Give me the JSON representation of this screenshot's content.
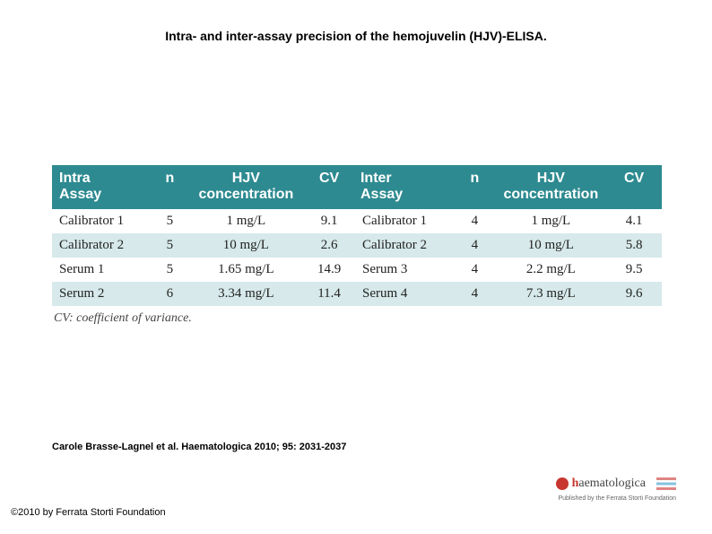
{
  "title": "Intra- and inter-assay precision of the hemojuvelin (HJV)-ELISA.",
  "table": {
    "headers": {
      "intra_assay": "Intra\nAssay",
      "n1": "n",
      "hjv1": "HJV\nconcentration",
      "cv1": "CV",
      "inter_assay": "Inter\nAssay",
      "n2": "n",
      "hjv2": "HJV\nconcentration",
      "cv2": "CV"
    },
    "rows": [
      {
        "label1": "Calibrator 1",
        "n1": "5",
        "conc1": "1 mg/L",
        "cv1": "9.1",
        "label2": "Calibrator 1",
        "n2": "4",
        "conc2": "1 mg/L",
        "cv2": "4.1",
        "band": "white"
      },
      {
        "label1": "Calibrator 2",
        "n1": "5",
        "conc1": "10 mg/L",
        "cv1": "2.6",
        "label2": "Calibrator 2",
        "n2": "4",
        "conc2": "10 mg/L",
        "cv2": "5.8",
        "band": "light"
      },
      {
        "label1": "Serum 1",
        "n1": "5",
        "conc1": "1.65 mg/L",
        "cv1": "14.9",
        "label2": "Serum 3",
        "n2": "4",
        "conc2": "2.2 mg/L",
        "cv2": "9.5",
        "band": "white"
      },
      {
        "label1": "Serum 2",
        "n1": "6",
        "conc1": "3.34 mg/L",
        "cv1": "11.4",
        "label2": "Serum 4",
        "n2": "4",
        "conc2": "7.3  mg/L",
        "cv2": "9.6",
        "band": "light"
      }
    ],
    "footnote": "CV: coefficient of variance.",
    "header_bg": "#2d8a90",
    "header_fg": "#ffffff",
    "band_light_bg": "#d7e9ea",
    "band_white_bg": "#ffffff",
    "body_font": "Georgia, 'Times New Roman', serif",
    "header_fontsize": 16,
    "body_fontsize": 15
  },
  "citation": "Carole Brasse-Lagnel et al. Haematologica 2010; 95: 2031-2037",
  "copyright": "©2010 by Ferrata Storti Foundation",
  "logo": {
    "brand_h": "h",
    "brand_rest": "aematologica",
    "subtitle": "Published by the Ferrata Storti Foundation",
    "brand_color": "#c7372f"
  }
}
